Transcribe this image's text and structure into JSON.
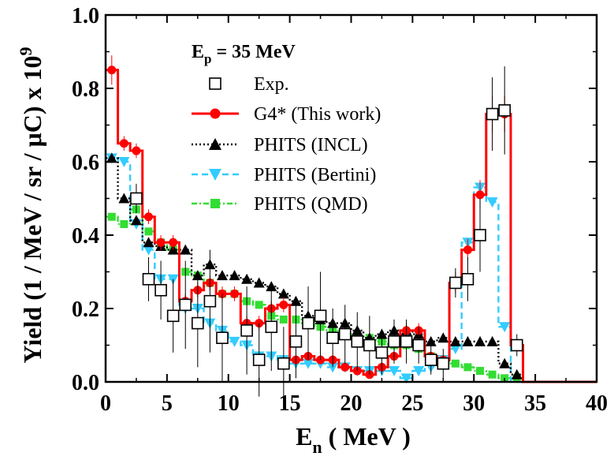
{
  "chart_data": {
    "type": "line",
    "title": "",
    "annotation": {
      "main": "E",
      "sub": "p",
      "rest": " = 35 MeV"
    },
    "xlabel": {
      "main": "E",
      "sub": "n",
      "rest": " ( MeV )"
    },
    "ylabel": {
      "main": "Yield (1 / MeV / sr / μC) x 10",
      "sup": "9"
    },
    "xlim": [
      0,
      40
    ],
    "ylim": [
      0,
      1.0
    ],
    "xticks": [
      0,
      5,
      10,
      15,
      20,
      25,
      30,
      35,
      40
    ],
    "yticks": [
      0.0,
      0.2,
      0.4,
      0.6,
      0.8,
      1.0
    ],
    "ytick_labels": [
      "0.0",
      "0.2",
      "0.4",
      "0.6",
      "0.8",
      "1.0"
    ],
    "legend_position": "top-center",
    "series": [
      {
        "name": "Exp.",
        "color": "#000000",
        "marker": "open-square",
        "line": "none",
        "points": [
          {
            "x": 2.5,
            "y": 0.5,
            "err": 0.04
          },
          {
            "x": 3.5,
            "y": 0.28,
            "err": 0.06
          },
          {
            "x": 4.5,
            "y": 0.25,
            "err": 0.08
          },
          {
            "x": 5.5,
            "y": 0.18,
            "err": 0.1
          },
          {
            "x": 6.5,
            "y": 0.21,
            "err": 0.12
          },
          {
            "x": 7.5,
            "y": 0.16,
            "err": 0.12
          },
          {
            "x": 8.5,
            "y": 0.22,
            "err": 0.14
          },
          {
            "x": 9.5,
            "y": 0.12,
            "err": 0.12
          },
          {
            "x": 11.5,
            "y": 0.14,
            "err": 0.12
          },
          {
            "x": 12.5,
            "y": 0.06,
            "err": 0.1
          },
          {
            "x": 13.5,
            "y": 0.15,
            "err": 0.12
          },
          {
            "x": 14.5,
            "y": 0.05,
            "err": 0.1
          },
          {
            "x": 15.5,
            "y": 0.11,
            "err": 0.1
          },
          {
            "x": 16.5,
            "y": 0.16,
            "err": 0.1
          },
          {
            "x": 17.5,
            "y": 0.18,
            "err": 0.12
          },
          {
            "x": 18.5,
            "y": 0.12,
            "err": 0.08
          },
          {
            "x": 19.5,
            "y": 0.13,
            "err": 0.08
          },
          {
            "x": 20.5,
            "y": 0.11,
            "err": 0.08
          },
          {
            "x": 21.5,
            "y": 0.1,
            "err": 0.08
          },
          {
            "x": 22.5,
            "y": 0.08,
            "err": 0.06
          },
          {
            "x": 23.5,
            "y": 0.11,
            "err": 0.06
          },
          {
            "x": 24.5,
            "y": 0.11,
            "err": 0.06
          },
          {
            "x": 25.5,
            "y": 0.1,
            "err": 0.05
          },
          {
            "x": 26.5,
            "y": 0.06,
            "err": 0.04
          },
          {
            "x": 27.5,
            "y": 0.05,
            "err": 0.04
          },
          {
            "x": 28.5,
            "y": 0.27,
            "err": 0.04
          },
          {
            "x": 29.5,
            "y": 0.28,
            "err": 0.06
          },
          {
            "x": 30.5,
            "y": 0.4,
            "err": 0.1
          },
          {
            "x": 31.5,
            "y": 0.73,
            "err": 0.1
          },
          {
            "x": 32.5,
            "y": 0.74,
            "err": 0.12
          },
          {
            "x": 33.5,
            "y": 0.1,
            "err": 0.03
          }
        ]
      },
      {
        "name": "G4* (This work)",
        "color": "#ff0000",
        "marker": "filled-circle",
        "line": "solid-step",
        "points": [
          {
            "x": 0.5,
            "y": 0.85,
            "err": 0.04
          },
          {
            "x": 1.5,
            "y": 0.65,
            "err": 0.02
          },
          {
            "x": 2.5,
            "y": 0.63,
            "err": 0.02
          },
          {
            "x": 3.5,
            "y": 0.45,
            "err": 0.02
          },
          {
            "x": 4.5,
            "y": 0.38,
            "err": 0.02
          },
          {
            "x": 5.5,
            "y": 0.38,
            "err": 0.02
          },
          {
            "x": 6.5,
            "y": 0.22,
            "err": 0.02
          },
          {
            "x": 7.5,
            "y": 0.25,
            "err": 0.02
          },
          {
            "x": 8.5,
            "y": 0.27,
            "err": 0.02
          },
          {
            "x": 9.5,
            "y": 0.24,
            "err": 0.02
          },
          {
            "x": 10.5,
            "y": 0.24,
            "err": 0.02
          },
          {
            "x": 11.5,
            "y": 0.16,
            "err": 0.02
          },
          {
            "x": 12.5,
            "y": 0.16,
            "err": 0.02
          },
          {
            "x": 13.5,
            "y": 0.2,
            "err": 0.02
          },
          {
            "x": 14.5,
            "y": 0.21,
            "err": 0.02
          },
          {
            "x": 15.5,
            "y": 0.06,
            "err": 0.01
          },
          {
            "x": 16.5,
            "y": 0.07,
            "err": 0.01
          },
          {
            "x": 17.5,
            "y": 0.06,
            "err": 0.01
          },
          {
            "x": 18.5,
            "y": 0.06,
            "err": 0.01
          },
          {
            "x": 19.5,
            "y": 0.04,
            "err": 0.01
          },
          {
            "x": 20.5,
            "y": 0.03,
            "err": 0.01
          },
          {
            "x": 21.5,
            "y": 0.02,
            "err": 0.01
          },
          {
            "x": 22.5,
            "y": 0.04,
            "err": 0.01
          },
          {
            "x": 23.5,
            "y": 0.07,
            "err": 0.01
          },
          {
            "x": 24.5,
            "y": 0.14,
            "err": 0.02
          },
          {
            "x": 25.5,
            "y": 0.14,
            "err": 0.02
          },
          {
            "x": 26.5,
            "y": 0.07,
            "err": 0.01
          },
          {
            "x": 27.5,
            "y": 0.06,
            "err": 0.01
          },
          {
            "x": 28.5,
            "y": 0.27,
            "err": 0.03
          },
          {
            "x": 29.5,
            "y": 0.36,
            "err": 0.03
          },
          {
            "x": 30.5,
            "y": 0.51,
            "err": 0.04
          },
          {
            "x": 31.5,
            "y": 0.73,
            "err": 0.05
          },
          {
            "x": 32.5,
            "y": 0.73,
            "err": 0.05
          },
          {
            "x": 33.5,
            "y": 0.1,
            "err": 0.01
          },
          {
            "x": 34.5,
            "y": 0.0,
            "err": 0.0
          },
          {
            "x": 35.5,
            "y": 0.0,
            "err": 0.0
          },
          {
            "x": 36.5,
            "y": 0.0,
            "err": 0.0
          },
          {
            "x": 37.5,
            "y": 0.0,
            "err": 0.0
          },
          {
            "x": 38.5,
            "y": 0.0,
            "err": 0.0
          },
          {
            "x": 39.5,
            "y": 0.0,
            "err": 0.0
          }
        ]
      },
      {
        "name": "PHITS (INCL)",
        "color": "#000000",
        "marker": "filled-triangle-up",
        "line": "dotted-step",
        "points": [
          {
            "x": 0.5,
            "y": 0.61
          },
          {
            "x": 1.5,
            "y": 0.5
          },
          {
            "x": 2.5,
            "y": 0.44
          },
          {
            "x": 3.5,
            "y": 0.38
          },
          {
            "x": 4.5,
            "y": 0.37
          },
          {
            "x": 5.5,
            "y": 0.36
          },
          {
            "x": 6.5,
            "y": 0.36
          },
          {
            "x": 7.5,
            "y": 0.29
          },
          {
            "x": 8.5,
            "y": 0.32
          },
          {
            "x": 9.5,
            "y": 0.29
          },
          {
            "x": 10.5,
            "y": 0.29
          },
          {
            "x": 11.5,
            "y": 0.28
          },
          {
            "x": 12.5,
            "y": 0.27
          },
          {
            "x": 13.5,
            "y": 0.26
          },
          {
            "x": 14.5,
            "y": 0.24
          },
          {
            "x": 15.5,
            "y": 0.22
          },
          {
            "x": 16.5,
            "y": 0.18
          },
          {
            "x": 17.5,
            "y": 0.17
          },
          {
            "x": 18.5,
            "y": 0.16
          },
          {
            "x": 19.5,
            "y": 0.16
          },
          {
            "x": 20.5,
            "y": 0.14
          },
          {
            "x": 21.5,
            "y": 0.12
          },
          {
            "x": 22.5,
            "y": 0.13
          },
          {
            "x": 23.5,
            "y": 0.14
          },
          {
            "x": 24.5,
            "y": 0.14
          },
          {
            "x": 25.5,
            "y": 0.13
          },
          {
            "x": 26.5,
            "y": 0.11
          },
          {
            "x": 27.5,
            "y": 0.12
          },
          {
            "x": 28.5,
            "y": 0.11
          },
          {
            "x": 29.5,
            "y": 0.11
          },
          {
            "x": 30.5,
            "y": 0.11
          },
          {
            "x": 31.5,
            "y": 0.11
          },
          {
            "x": 32.5,
            "y": 0.05
          },
          {
            "x": 33.5,
            "y": 0.02
          },
          {
            "x": 34.5,
            "y": 0.0
          },
          {
            "x": 35.5,
            "y": 0.0
          },
          {
            "x": 36.5,
            "y": 0.0
          },
          {
            "x": 37.5,
            "y": 0.0
          },
          {
            "x": 38.5,
            "y": 0.0
          },
          {
            "x": 39.5,
            "y": 0.0
          }
        ]
      },
      {
        "name": "PHITS (Bertini)",
        "color": "#33ccff",
        "marker": "filled-triangle-down",
        "line": "dashed-step",
        "points": [
          {
            "x": 0.5,
            "y": 0.61
          },
          {
            "x": 1.5,
            "y": 0.6
          },
          {
            "x": 2.5,
            "y": 0.43
          },
          {
            "x": 3.5,
            "y": 0.36
          },
          {
            "x": 4.5,
            "y": 0.28
          },
          {
            "x": 5.5,
            "y": 0.28
          },
          {
            "x": 6.5,
            "y": 0.2
          },
          {
            "x": 7.5,
            "y": 0.2
          },
          {
            "x": 8.5,
            "y": 0.16
          },
          {
            "x": 9.5,
            "y": 0.14
          },
          {
            "x": 10.5,
            "y": 0.11
          },
          {
            "x": 11.5,
            "y": 0.1
          },
          {
            "x": 12.5,
            "y": 0.07
          },
          {
            "x": 13.5,
            "y": 0.07
          },
          {
            "x": 14.5,
            "y": 0.06
          },
          {
            "x": 15.5,
            "y": 0.05
          },
          {
            "x": 16.5,
            "y": 0.05
          },
          {
            "x": 17.5,
            "y": 0.05
          },
          {
            "x": 18.5,
            "y": 0.04
          },
          {
            "x": 19.5,
            "y": 0.04
          },
          {
            "x": 20.5,
            "y": 0.03
          },
          {
            "x": 21.5,
            "y": 0.03
          },
          {
            "x": 22.5,
            "y": 0.03
          },
          {
            "x": 23.5,
            "y": 0.03
          },
          {
            "x": 24.5,
            "y": 0.01
          },
          {
            "x": 25.5,
            "y": 0.03
          },
          {
            "x": 26.5,
            "y": 0.04
          },
          {
            "x": 27.5,
            "y": 0.06
          },
          {
            "x": 28.5,
            "y": 0.09
          },
          {
            "x": 29.5,
            "y": 0.38
          },
          {
            "x": 30.5,
            "y": 0.53
          },
          {
            "x": 31.5,
            "y": 0.49
          },
          {
            "x": 32.5,
            "y": 0.15
          },
          {
            "x": 33.5,
            "y": 0.0
          },
          {
            "x": 34.5,
            "y": 0.0
          },
          {
            "x": 35.5,
            "y": 0.0
          },
          {
            "x": 36.5,
            "y": 0.0
          },
          {
            "x": 37.5,
            "y": 0.0
          },
          {
            "x": 38.5,
            "y": 0.0
          },
          {
            "x": 39.5,
            "y": 0.0
          }
        ]
      },
      {
        "name": "PHITS (QMD)",
        "color": "#33dd33",
        "marker": "filled-square",
        "line": "dashdot-step",
        "points": [
          {
            "x": 0.5,
            "y": 0.45
          },
          {
            "x": 1.5,
            "y": 0.43
          },
          {
            "x": 2.5,
            "y": 0.47
          },
          {
            "x": 3.5,
            "y": 0.41
          },
          {
            "x": 4.5,
            "y": 0.38
          },
          {
            "x": 5.5,
            "y": 0.36
          },
          {
            "x": 6.5,
            "y": 0.3
          },
          {
            "x": 7.5,
            "y": 0.29
          },
          {
            "x": 8.5,
            "y": 0.27
          },
          {
            "x": 9.5,
            "y": 0.24
          },
          {
            "x": 10.5,
            "y": 0.24
          },
          {
            "x": 11.5,
            "y": 0.22
          },
          {
            "x": 12.5,
            "y": 0.21
          },
          {
            "x": 13.5,
            "y": 0.18
          },
          {
            "x": 14.5,
            "y": 0.17
          },
          {
            "x": 15.5,
            "y": 0.17
          },
          {
            "x": 16.5,
            "y": 0.16
          },
          {
            "x": 17.5,
            "y": 0.15
          },
          {
            "x": 18.5,
            "y": 0.14
          },
          {
            "x": 19.5,
            "y": 0.13
          },
          {
            "x": 20.5,
            "y": 0.12
          },
          {
            "x": 21.5,
            "y": 0.12
          },
          {
            "x": 22.5,
            "y": 0.11
          },
          {
            "x": 23.5,
            "y": 0.1
          },
          {
            "x": 24.5,
            "y": 0.1
          },
          {
            "x": 25.5,
            "y": 0.09
          },
          {
            "x": 26.5,
            "y": 0.07
          },
          {
            "x": 27.5,
            "y": 0.06
          },
          {
            "x": 28.5,
            "y": 0.05
          },
          {
            "x": 29.5,
            "y": 0.04
          },
          {
            "x": 30.5,
            "y": 0.03
          },
          {
            "x": 31.5,
            "y": 0.02
          },
          {
            "x": 32.5,
            "y": 0.01
          },
          {
            "x": 33.5,
            "y": 0.01
          },
          {
            "x": 34.5,
            "y": 0.0
          },
          {
            "x": 35.5,
            "y": 0.0
          },
          {
            "x": 36.5,
            "y": 0.0
          },
          {
            "x": 37.5,
            "y": 0.0
          },
          {
            "x": 38.5,
            "y": 0.0
          },
          {
            "x": 39.5,
            "y": 0.0
          }
        ]
      }
    ]
  }
}
